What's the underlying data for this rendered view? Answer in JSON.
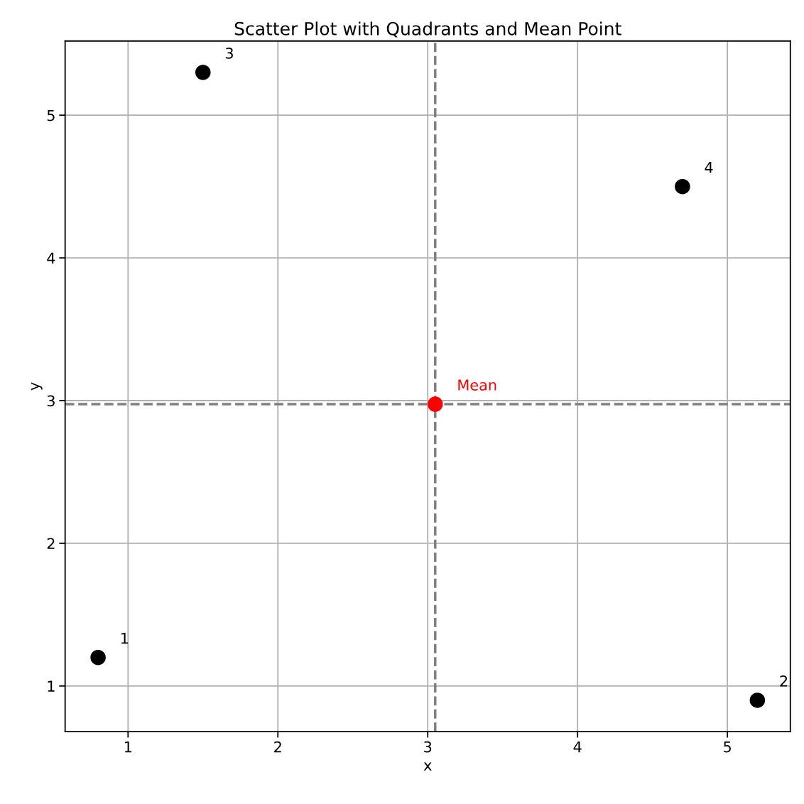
{
  "chart_data": {
    "type": "scatter",
    "title": "Scatter Plot with Quadrants and Mean Point",
    "xlabel": "x",
    "ylabel": "y",
    "series": [
      {
        "color": "#000000",
        "x": [
          0.8,
          5.2,
          1.5,
          4.7
        ],
        "values": [
          1.2,
          0.9,
          5.3,
          4.5
        ]
      },
      {
        "name": "Mean",
        "color": "#ff0000",
        "x": [
          3.05
        ],
        "values": [
          2.975
        ]
      }
    ],
    "annotations": [
      {
        "text": "1",
        "x": 0.8,
        "y": 1.2
      },
      {
        "text": "2",
        "x": 5.2,
        "y": 0.9
      },
      {
        "text": "3",
        "x": 1.5,
        "y": 5.3
      },
      {
        "text": "4",
        "x": 4.7,
        "y": 4.5
      }
    ],
    "ref_lines": [
      {
        "axis": "x",
        "value": 3.05,
        "color": "#808080",
        "line_style": "dashed"
      },
      {
        "axis": "y",
        "value": 2.975,
        "color": "#808080",
        "line_style": "dashed"
      }
    ],
    "xlim": [
      0.58,
      5.42
    ],
    "ylim": [
      0.68,
      5.52
    ],
    "xticks": [
      1,
      2,
      3,
      4,
      5
    ],
    "yticks": [
      1,
      2,
      3,
      4,
      5
    ],
    "grid": true,
    "marker": "circle"
  }
}
